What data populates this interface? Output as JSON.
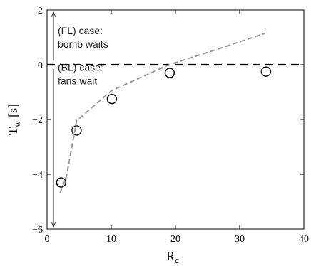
{
  "chart_data": {
    "type": "scatter",
    "xlabel": "R",
    "xlabel_sub": "c",
    "ylabel": "T",
    "ylabel_sub": "w",
    "ylabel_unit": "[s]",
    "xlim": [
      0,
      40
    ],
    "ylim": [
      -6,
      2
    ],
    "xticks": [
      0,
      10,
      20,
      30,
      40
    ],
    "yticks": [
      -6,
      -4,
      -2,
      0,
      2
    ],
    "xtick_labels": [
      "0",
      "10",
      "20",
      "30",
      "40"
    ],
    "ytick_labels": [
      "−6",
      "−4",
      "−2",
      "0",
      "2"
    ],
    "grid": false,
    "points": [
      {
        "x": 2.2,
        "y": -4.3
      },
      {
        "x": 4.6,
        "y": -2.4
      },
      {
        "x": 10.1,
        "y": -1.25
      },
      {
        "x": 19.1,
        "y": -0.3
      },
      {
        "x": 34.1,
        "y": -0.25
      }
    ],
    "fit_curve": [
      {
        "x": 2.0,
        "y": -4.7
      },
      {
        "x": 3.0,
        "y": -4.1
      },
      {
        "x": 4.6,
        "y": -2.05
      },
      {
        "x": 10.0,
        "y": -0.95
      },
      {
        "x": 19.0,
        "y": 0.0
      },
      {
        "x": 25.0,
        "y": 0.45
      },
      {
        "x": 34.0,
        "y": 1.15
      }
    ],
    "zero_line": {
      "y": 0,
      "style": "dashed"
    },
    "annotations": [
      {
        "id": "fl",
        "lines": [
          "(FL) case:",
          "bomb waits"
        ]
      },
      {
        "id": "bl",
        "lines": [
          "(BL) case:",
          "fans wait"
        ]
      }
    ],
    "arrow_x": 1.0,
    "arrows": [
      {
        "id": "up",
        "from": 0,
        "to": 2
      },
      {
        "id": "down",
        "from": 0,
        "to": -6
      }
    ],
    "colors": {
      "markers": "#000000",
      "fit": "#999999",
      "zero_line": "#000000",
      "axes": "#000000",
      "annotation_text": "#222222"
    }
  }
}
